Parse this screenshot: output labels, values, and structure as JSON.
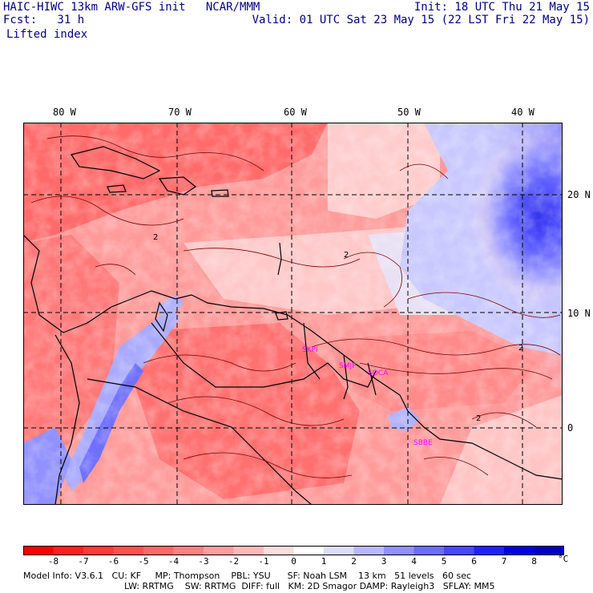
{
  "header": {
    "model_title": "HAIC-HIWC 13km ARW-GFS init",
    "org": "NCAR/MMM",
    "init": "Init: 18 UTC Thu 21 May 15",
    "fcst": "Fcst:   31 h",
    "valid": "Valid: 01 UTC Sat 23 May 15 (22 LST Fri 22 May 15)",
    "field": "Lifted index"
  },
  "axes": {
    "lon_labels": [
      "80 W",
      "70 W",
      "60 W",
      "50 W",
      "40 W"
    ],
    "lat_labels": [
      "20 N",
      "10 N",
      "0"
    ]
  },
  "stations": [
    "SKPI",
    "SMJP",
    "SOCA",
    "SBBE"
  ],
  "contour_label": "2",
  "colorbar": {
    "labels": [
      "-8",
      "-7",
      "-6",
      "-5",
      "-4",
      "-3",
      "-2",
      "-1",
      "0",
      "1",
      "2",
      "3",
      "4",
      "5",
      "6",
      "7",
      "8"
    ],
    "unit": "°C",
    "colors": [
      "#ff0000",
      "#ff2020",
      "#ff3838",
      "#ff5050",
      "#ff6868",
      "#ff8080",
      "#ff9c9c",
      "#ffb8b8",
      "#ffdcdc",
      "#ffffff",
      "#dcdcff",
      "#b8b8ff",
      "#9090ff",
      "#6c6cff",
      "#4848ff",
      "#2020ff",
      "#0000e6",
      "#0000c8"
    ]
  },
  "footer": {
    "line1": "Model Info: V3.6.1   CU: KF     MP: Thompson    PBL: YSU      SF: Noah LSM    13 km   51 levels   60 sec",
    "line2": "LW: RRTMG    SW: RRTMG  DIFF: full   KM: 2D Smagor DAMP: Rayleigh3   SFLAY: MM5"
  }
}
